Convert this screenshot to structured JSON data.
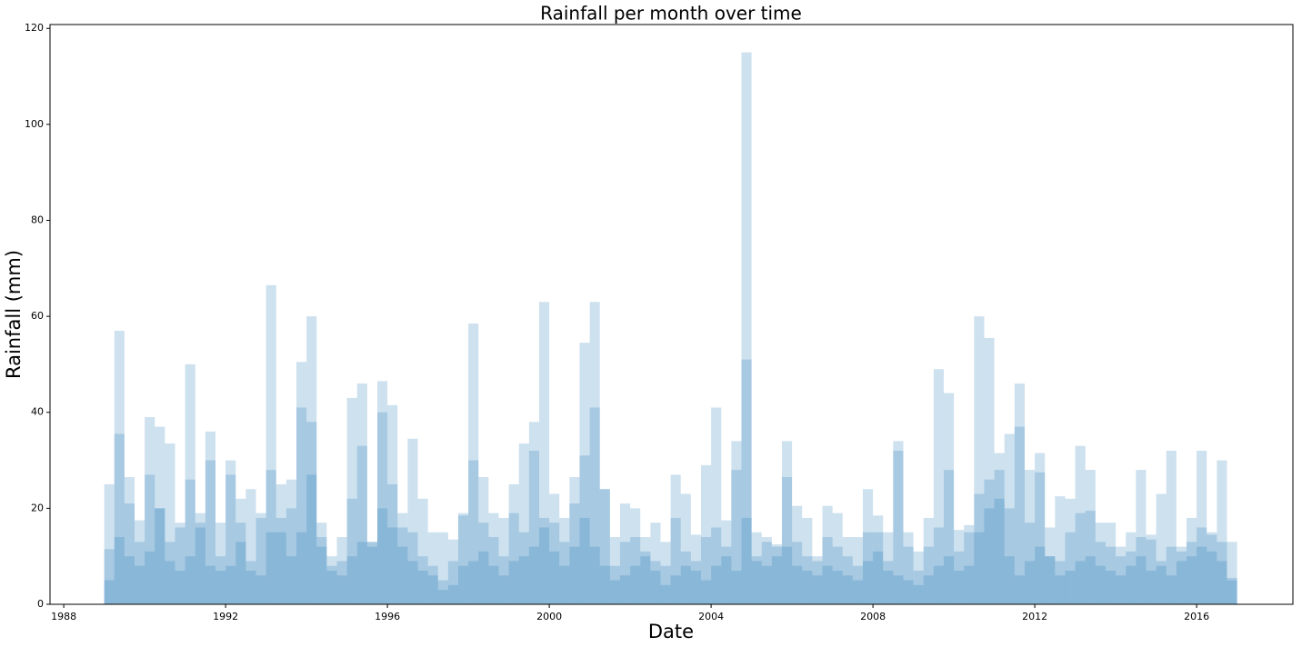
{
  "chart_data": {
    "type": "bar",
    "title": "Rainfall per month over time",
    "xlabel": "Date",
    "ylabel": "Rainfall (mm)",
    "x": [
      1989.125,
      1989.375,
      1989.625,
      1989.875,
      1990.125,
      1990.375,
      1990.625,
      1990.875,
      1991.125,
      1991.375,
      1991.625,
      1991.875,
      1992.125,
      1992.375,
      1992.625,
      1992.875,
      1993.125,
      1993.375,
      1993.625,
      1993.875,
      1994.125,
      1994.375,
      1994.625,
      1994.875,
      1995.125,
      1995.375,
      1995.625,
      1995.875,
      1996.125,
      1996.375,
      1996.625,
      1996.875,
      1997.125,
      1997.375,
      1997.625,
      1997.875,
      1998.125,
      1998.375,
      1998.625,
      1998.875,
      1999.125,
      1999.375,
      1999.625,
      1999.875,
      2000.125,
      2000.375,
      2000.625,
      2000.875,
      2001.125,
      2001.375,
      2001.625,
      2001.875,
      2002.125,
      2002.375,
      2002.625,
      2002.875,
      2003.125,
      2003.375,
      2003.625,
      2003.875,
      2004.125,
      2004.375,
      2004.625,
      2004.875,
      2005.125,
      2005.375,
      2005.625,
      2005.875,
      2006.125,
      2006.375,
      2006.625,
      2006.875,
      2007.125,
      2007.375,
      2007.625,
      2007.875,
      2008.125,
      2008.375,
      2008.625,
      2008.875,
      2009.125,
      2009.375,
      2009.625,
      2009.875,
      2010.125,
      2010.375,
      2010.625,
      2010.875,
      2011.125,
      2011.375,
      2011.625,
      2011.875,
      2012.125,
      2012.375,
      2012.625,
      2012.875,
      2013.125,
      2013.375,
      2013.625,
      2013.875,
      2014.125,
      2014.375,
      2014.625,
      2014.875,
      2015.125,
      2015.375,
      2015.625,
      2015.875,
      2016.125,
      2016.375,
      2016.625,
      2016.875
    ],
    "series": [
      {
        "color": "#1f77b4",
        "values": [
          25,
          57,
          26.5,
          17.5,
          39,
          37,
          33.5,
          17,
          50,
          17,
          36,
          17,
          30,
          17,
          24,
          19,
          66.5,
          18,
          26,
          50.5,
          60,
          17,
          10,
          14,
          43,
          46,
          13,
          46.5,
          41.5,
          19,
          34.5,
          22,
          15,
          15,
          13.5,
          18.5,
          58.5,
          26.5,
          19,
          18,
          19,
          33.5,
          38,
          63,
          23,
          18,
          21,
          54.5,
          63,
          24,
          14,
          21,
          20,
          14,
          17,
          13,
          27,
          23,
          14.5,
          29,
          41,
          17.5,
          34,
          115,
          15,
          14,
          12,
          34,
          20.5,
          18,
          10,
          20.5,
          19,
          14,
          14,
          24,
          18.5,
          15,
          34,
          15,
          11,
          18,
          49,
          44,
          15.5,
          16.5,
          60,
          55.5,
          31.5,
          35.5,
          46,
          28,
          31.5,
          16,
          22.5,
          22,
          33,
          28,
          17,
          17,
          12,
          15,
          28,
          14.5,
          23,
          32,
          12,
          18,
          32,
          15,
          30,
          13
        ]
      },
      {
        "color": "#1f77b4",
        "values": [
          11.5,
          35.5,
          21,
          13,
          27,
          20,
          13,
          16,
          26,
          19,
          30,
          10,
          27,
          13,
          9,
          18,
          28,
          15,
          20,
          41,
          38,
          12,
          7,
          9,
          22,
          33,
          13,
          40,
          25,
          16,
          15,
          10,
          8,
          5,
          9,
          19,
          30,
          17,
          14,
          10,
          25,
          15,
          32,
          18,
          17,
          13,
          26.5,
          31,
          41,
          24,
          8,
          13,
          14,
          10,
          9,
          8,
          18,
          11,
          9,
          14,
          16,
          12,
          28,
          51,
          10,
          13,
          12.5,
          26.5,
          13,
          10,
          9,
          14,
          12,
          10,
          8,
          15,
          15,
          9,
          32,
          12,
          7,
          12,
          16,
          28,
          11,
          15,
          23,
          26,
          28,
          20,
          37,
          17,
          27.5,
          10,
          9,
          15,
          19,
          19.5,
          13,
          12,
          10,
          11,
          14,
          13.5,
          9,
          12,
          11,
          13,
          16,
          14.5,
          13,
          5.5
        ]
      },
      {
        "color": "#1f77b4",
        "values": [
          5,
          14,
          10,
          8,
          11,
          20,
          9,
          7,
          10,
          16,
          8,
          7,
          8,
          22,
          7,
          6,
          15,
          25,
          10,
          15,
          27,
          14,
          8,
          6,
          10,
          13,
          12,
          20,
          16,
          12,
          9,
          7,
          6,
          3,
          4,
          8,
          9,
          11,
          8,
          6,
          9,
          10,
          12,
          16,
          11,
          8,
          12,
          18,
          12,
          8,
          5,
          6,
          8,
          11,
          7,
          4,
          6,
          8,
          7,
          5,
          8,
          10,
          7,
          18,
          9,
          8,
          10,
          12,
          8,
          7,
          6,
          8,
          7,
          6,
          5,
          9,
          11,
          7,
          6,
          5,
          4,
          6,
          8,
          10,
          7,
          8,
          15,
          20,
          22,
          10,
          6,
          9,
          12,
          10,
          6,
          7,
          9,
          10,
          8,
          7,
          6,
          8,
          10,
          7,
          8,
          6,
          9,
          10,
          12,
          11,
          9,
          5
        ]
      }
    ],
    "alpha": 0.22,
    "xlim": [
      1987.66,
      2018.38
    ],
    "xticks": [
      1988,
      1992,
      1996,
      2000,
      2004,
      2008,
      2012,
      2016
    ],
    "ylim": [
      0,
      120.8
    ],
    "yticks": [
      0,
      20,
      40,
      60,
      80,
      100,
      120
    ],
    "grid": false
  }
}
